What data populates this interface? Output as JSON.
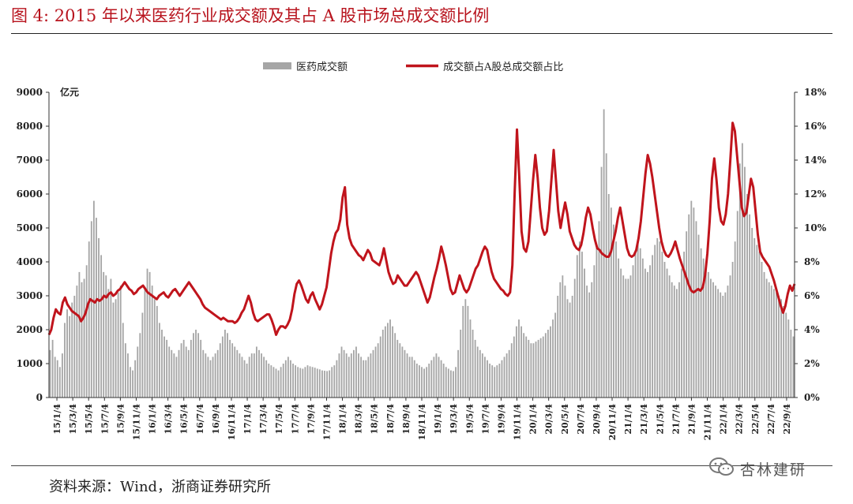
{
  "figure": {
    "title": "图 4:    2015 年以来医药行业成交额及其占 A 股市场总成交额比例",
    "source": "资料来源：Wind，浙商证券研究所",
    "watermark": "杏林建研"
  },
  "colors": {
    "bar": "#a6a6a6",
    "line": "#c0141c",
    "title": "#b8141e"
  },
  "chart_data": {
    "type": "bar",
    "y_unit_label": "亿元",
    "ylim": [
      0,
      9000
    ],
    "y_ticks": [
      "0",
      "1000",
      "2000",
      "3000",
      "4000",
      "5000",
      "6000",
      "7000",
      "8000",
      "9000"
    ],
    "y2lim": [
      0,
      0.18
    ],
    "y2_ticks": [
      "0%",
      "2%",
      "4%",
      "6%",
      "8%",
      "10%",
      "12%",
      "14%",
      "16%",
      "18%"
    ],
    "x_tick_labels": [
      "15/1/4",
      "15/3/4",
      "15/5/4",
      "15/7/4",
      "15/9/4",
      "15/11/4",
      "16/1/4",
      "16/3/4",
      "16/5/4",
      "16/7/4",
      "16/9/4",
      "16/11/4",
      "17/1/4",
      "17/3/4",
      "17/5/4",
      "17/7/4",
      "17/9/4",
      "17/11/4",
      "18/1/4",
      "18/3/4",
      "18/5/4",
      "18/7/4",
      "18/9/4",
      "18/11/4",
      "19/1/4",
      "19/3/4",
      "19/5/4",
      "19/7/4",
      "19/9/4",
      "19/11/4",
      "20/1/4",
      "20/3/4",
      "20/5/4",
      "20/7/4",
      "20/9/4",
      "20/11/4",
      "21/1/4",
      "21/3/4",
      "21/5/4",
      "21/7/4",
      "21/9/4",
      "21/11/4",
      "22/1/4",
      "22/3/4",
      "22/5/4",
      "22/7/4",
      "22/9/4"
    ],
    "legend": [
      "医药成交额",
      "成交额占A股总成交额占比"
    ],
    "legend_position": "top",
    "series": [
      {
        "name": "医药成交额",
        "type": "bar",
        "axis": "left",
        "values": [
          1400,
          1700,
          1200,
          1100,
          900,
          1300,
          2200,
          2600,
          2400,
          2800,
          3000,
          3300,
          3700,
          3400,
          3500,
          3900,
          4600,
          5200,
          5800,
          5300,
          4700,
          4200,
          3700,
          3600,
          3200,
          3500,
          2800,
          2900,
          3100,
          3300,
          2200,
          1600,
          1300,
          900,
          800,
          1100,
          1500,
          1900,
          2500,
          3200,
          3800,
          3700,
          3300,
          2900,
          2700,
          2200,
          2000,
          1800,
          1700,
          1500,
          1400,
          1300,
          1200,
          1400,
          1600,
          1700,
          1500,
          1400,
          1700,
          1900,
          2000,
          1900,
          1700,
          1400,
          1300,
          1200,
          1100,
          1200,
          1300,
          1400,
          1600,
          1800,
          2000,
          1900,
          1700,
          1600,
          1500,
          1400,
          1300,
          1200,
          1100,
          1000,
          1200,
          1300,
          1300,
          1500,
          1400,
          1300,
          1200,
          1100,
          1000,
          950,
          900,
          850,
          800,
          900,
          1000,
          1100,
          1200,
          1100,
          1000,
          950,
          900,
          870,
          850,
          900,
          950,
          920,
          900,
          880,
          850,
          830,
          800,
          790,
          780,
          800,
          900,
          950,
          1100,
          1300,
          1500,
          1400,
          1300,
          1200,
          1300,
          1400,
          1500,
          1300,
          1200,
          1100,
          1100,
          1200,
          1300,
          1400,
          1500,
          1600,
          1800,
          2000,
          2100,
          2200,
          2300,
          2100,
          1900,
          1700,
          1600,
          1500,
          1400,
          1300,
          1200,
          1200,
          1100,
          1000,
          950,
          900,
          850,
          900,
          1000,
          1100,
          1200,
          1300,
          1200,
          1100,
          1000,
          900,
          850,
          800,
          780,
          900,
          1400,
          2000,
          2700,
          2900,
          2700,
          2300,
          2000,
          1700,
          1500,
          1400,
          1300,
          1200,
          1100,
          1000,
          950,
          900,
          950,
          1000,
          1100,
          1200,
          1300,
          1400,
          1600,
          1800,
          2100,
          2300,
          2100,
          1900,
          1800,
          1700,
          1600,
          1600,
          1650,
          1700,
          1750,
          1800,
          1900,
          2000,
          2100,
          2300,
          2500,
          3000,
          3400,
          3600,
          3300,
          2900,
          2800,
          3000,
          3500,
          4200,
          4600,
          4300,
          3800,
          3300,
          3100,
          3400,
          3900,
          4400,
          5200,
          6800,
          8500,
          7200,
          6000,
          5600,
          5100,
          4600,
          4100,
          3800,
          3600,
          3500,
          3500,
          3600,
          3900,
          4300,
          4600,
          4400,
          4100,
          3800,
          3700,
          3900,
          4200,
          4500,
          4700,
          4600,
          4300,
          4000,
          3800,
          3600,
          3400,
          3300,
          3200,
          3400,
          3800,
          4300,
          4900,
          5400,
          5800,
          5600,
          5200,
          4800,
          4400,
          4100,
          3900,
          3700,
          3500,
          3400,
          3300,
          3200,
          3100,
          3000,
          3100,
          3300,
          3600,
          4000,
          4600,
          5500,
          6900,
          7500,
          6800,
          6000,
          5400,
          5000,
          4700,
          4500,
          4300,
          4000,
          3700,
          3500,
          3400,
          3300,
          3200,
          3100,
          3000,
          2900,
          2700,
          2500,
          2300,
          2000,
          1800
        ]
      },
      {
        "name": "成交额占A股总成交额占比",
        "type": "line",
        "axis": "right",
        "values": [
          0.037,
          0.04,
          0.047,
          0.052,
          0.05,
          0.049,
          0.056,
          0.059,
          0.055,
          0.053,
          0.051,
          0.05,
          0.049,
          0.048,
          0.045,
          0.047,
          0.05,
          0.055,
          0.058,
          0.057,
          0.056,
          0.058,
          0.057,
          0.058,
          0.06,
          0.059,
          0.061,
          0.062,
          0.06,
          0.061,
          0.063,
          0.064,
          0.066,
          0.068,
          0.066,
          0.064,
          0.063,
          0.061,
          0.062,
          0.064,
          0.065,
          0.066,
          0.064,
          0.062,
          0.061,
          0.06,
          0.059,
          0.058,
          0.06,
          0.061,
          0.062,
          0.06,
          0.059,
          0.061,
          0.063,
          0.064,
          0.062,
          0.06,
          0.062,
          0.064,
          0.066,
          0.068,
          0.066,
          0.064,
          0.062,
          0.06,
          0.058,
          0.055,
          0.053,
          0.052,
          0.051,
          0.05,
          0.049,
          0.048,
          0.047,
          0.046,
          0.047,
          0.046,
          0.045,
          0.045,
          0.045,
          0.044,
          0.045,
          0.047,
          0.05,
          0.052,
          0.056,
          0.06,
          0.056,
          0.05,
          0.046,
          0.045,
          0.046,
          0.047,
          0.048,
          0.049,
          0.049,
          0.046,
          0.042,
          0.037,
          0.04,
          0.042,
          0.042,
          0.041,
          0.043,
          0.046,
          0.052,
          0.061,
          0.067,
          0.069,
          0.066,
          0.062,
          0.058,
          0.056,
          0.06,
          0.062,
          0.058,
          0.055,
          0.052,
          0.055,
          0.06,
          0.065,
          0.075,
          0.085,
          0.092,
          0.097,
          0.099,
          0.105,
          0.118,
          0.124,
          0.102,
          0.094,
          0.09,
          0.088,
          0.086,
          0.084,
          0.083,
          0.081,
          0.084,
          0.087,
          0.085,
          0.081,
          0.08,
          0.079,
          0.078,
          0.082,
          0.088,
          0.081,
          0.074,
          0.07,
          0.067,
          0.068,
          0.072,
          0.07,
          0.068,
          0.066,
          0.066,
          0.068,
          0.07,
          0.072,
          0.074,
          0.072,
          0.068,
          0.064,
          0.06,
          0.056,
          0.059,
          0.065,
          0.071,
          0.076,
          0.082,
          0.089,
          0.084,
          0.078,
          0.071,
          0.064,
          0.061,
          0.062,
          0.067,
          0.072,
          0.068,
          0.064,
          0.062,
          0.064,
          0.068,
          0.072,
          0.076,
          0.078,
          0.082,
          0.086,
          0.089,
          0.087,
          0.08,
          0.074,
          0.07,
          0.068,
          0.066,
          0.064,
          0.063,
          0.061,
          0.06,
          0.062,
          0.078,
          0.121,
          0.158,
          0.13,
          0.098,
          0.088,
          0.086,
          0.092,
          0.11,
          0.128,
          0.143,
          0.13,
          0.112,
          0.1,
          0.096,
          0.098,
          0.11,
          0.128,
          0.146,
          0.128,
          0.11,
          0.1,
          0.108,
          0.115,
          0.108,
          0.098,
          0.094,
          0.09,
          0.088,
          0.087,
          0.09,
          0.097,
          0.106,
          0.112,
          0.108,
          0.1,
          0.093,
          0.088,
          0.087,
          0.085,
          0.084,
          0.083,
          0.083,
          0.086,
          0.092,
          0.098,
          0.106,
          0.112,
          0.104,
          0.096,
          0.088,
          0.084,
          0.083,
          0.084,
          0.087,
          0.094,
          0.104,
          0.118,
          0.132,
          0.143,
          0.138,
          0.13,
          0.12,
          0.11,
          0.1,
          0.092,
          0.087,
          0.084,
          0.083,
          0.085,
          0.088,
          0.092,
          0.087,
          0.082,
          0.078,
          0.074,
          0.07,
          0.066,
          0.063,
          0.062,
          0.063,
          0.064,
          0.063,
          0.065,
          0.072,
          0.085,
          0.104,
          0.129,
          0.141,
          0.128,
          0.112,
          0.104,
          0.102,
          0.108,
          0.12,
          0.14,
          0.162,
          0.157,
          0.142,
          0.127,
          0.112,
          0.107,
          0.109,
          0.119,
          0.129,
          0.124,
          0.11,
          0.096,
          0.086,
          0.083,
          0.081,
          0.079,
          0.077,
          0.073,
          0.069,
          0.064,
          0.059,
          0.054,
          0.05,
          0.054,
          0.061,
          0.066,
          0.063,
          0.067
        ]
      }
    ]
  }
}
